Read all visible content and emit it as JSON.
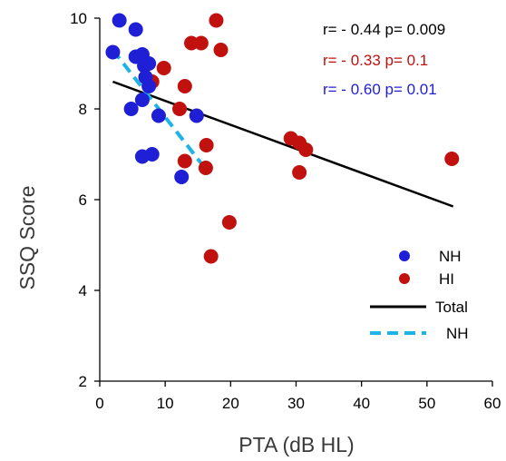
{
  "chart_data": {
    "type": "scatter",
    "xlabel": "PTA (dB HL)",
    "ylabel": "SSQ Score",
    "xlim": [
      0,
      60
    ],
    "ylim": [
      2,
      10
    ],
    "x_ticks": [
      0,
      10,
      20,
      30,
      40,
      50,
      60
    ],
    "y_ticks": [
      2,
      4,
      6,
      8,
      10
    ],
    "grid": false,
    "legend_position": "right",
    "colors": {
      "nh": "#1f1fd6",
      "hi": "#c0110f",
      "total": "#000000",
      "nh_fit": "#1fb4e6",
      "stat_total": "#000000",
      "stat_hi": "#c0110f",
      "stat_nh": "#1f1fd6"
    },
    "series": [
      {
        "name": "NH",
        "marker": "circle",
        "points": [
          {
            "x": 2.0,
            "y": 9.25
          },
          {
            "x": 3.0,
            "y": 9.95
          },
          {
            "x": 5.5,
            "y": 9.75
          },
          {
            "x": 5.5,
            "y": 9.15
          },
          {
            "x": 6.5,
            "y": 9.2
          },
          {
            "x": 6.8,
            "y": 8.95
          },
          {
            "x": 7.5,
            "y": 9.0
          },
          {
            "x": 7.0,
            "y": 8.7
          },
          {
            "x": 7.5,
            "y": 8.5
          },
          {
            "x": 6.5,
            "y": 8.2
          },
          {
            "x": 4.8,
            "y": 8.0
          },
          {
            "x": 9.0,
            "y": 7.85
          },
          {
            "x": 6.5,
            "y": 6.95
          },
          {
            "x": 8.0,
            "y": 7.0
          },
          {
            "x": 12.5,
            "y": 6.5
          },
          {
            "x": 14.8,
            "y": 7.85
          }
        ]
      },
      {
        "name": "HI",
        "marker": "circle",
        "points": [
          {
            "x": 8.0,
            "y": 8.6
          },
          {
            "x": 9.8,
            "y": 8.9
          },
          {
            "x": 13.0,
            "y": 8.5
          },
          {
            "x": 12.2,
            "y": 8.0
          },
          {
            "x": 14.0,
            "y": 9.45
          },
          {
            "x": 15.5,
            "y": 9.45
          },
          {
            "x": 17.8,
            "y": 9.95
          },
          {
            "x": 18.5,
            "y": 9.3
          },
          {
            "x": 13.0,
            "y": 6.85
          },
          {
            "x": 16.3,
            "y": 7.2
          },
          {
            "x": 16.2,
            "y": 6.7
          },
          {
            "x": 17.0,
            "y": 4.75
          },
          {
            "x": 19.8,
            "y": 5.5
          },
          {
            "x": 29.2,
            "y": 7.35
          },
          {
            "x": 30.5,
            "y": 7.25
          },
          {
            "x": 31.5,
            "y": 7.1
          },
          {
            "x": 30.5,
            "y": 6.6
          },
          {
            "x": 53.8,
            "y": 6.9
          }
        ]
      }
    ],
    "fit_lines": [
      {
        "name": "Total",
        "style": "solid",
        "x": [
          2,
          54
        ],
        "y": [
          8.6,
          5.85
        ]
      },
      {
        "name": "NH",
        "style": "dashed",
        "x": [
          2,
          15.5
        ],
        "y": [
          9.3,
          6.8
        ]
      }
    ],
    "annotations": [
      {
        "text": "r= - 0.44 p= 0.009",
        "color_key": "stat_total"
      },
      {
        "text": "r= - 0.33 p= 0.1",
        "color_key": "stat_hi"
      },
      {
        "text": "r= - 0.60 p= 0.01",
        "color_key": "stat_nh"
      }
    ],
    "legend": [
      {
        "label": "NH",
        "kind": "marker",
        "color_key": "nh"
      },
      {
        "label": "HI",
        "kind": "marker",
        "color_key": "hi"
      },
      {
        "label": "Total",
        "kind": "solid",
        "color_key": "total"
      },
      {
        "label": "NH",
        "kind": "dashed",
        "color_key": "nh_fit"
      }
    ]
  }
}
